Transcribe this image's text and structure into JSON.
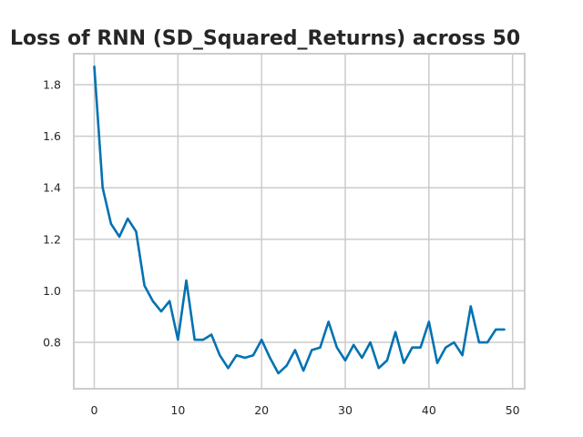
{
  "chart_data": {
    "type": "line",
    "title": "Loss of RNN (SD_Squared_Returns) across 50",
    "xlabel": "",
    "ylabel": "",
    "xlim": [
      -2.45,
      51.45
    ],
    "ylim": [
      0.62,
      1.92
    ],
    "xticks": [
      0,
      10,
      20,
      30,
      40,
      50
    ],
    "yticks": [
      0.8,
      1.0,
      1.2,
      1.4,
      1.6,
      1.8
    ],
    "ytick_labels": [
      "0.8",
      "1.0",
      "1.2",
      "1.4",
      "1.6",
      "1.8"
    ],
    "grid": true,
    "color": "#0072b2",
    "x": [
      0,
      1,
      2,
      3,
      4,
      5,
      6,
      7,
      8,
      9,
      10,
      11,
      12,
      13,
      14,
      15,
      16,
      17,
      18,
      19,
      20,
      21,
      22,
      23,
      24,
      25,
      26,
      27,
      28,
      29,
      30,
      31,
      32,
      33,
      34,
      35,
      36,
      37,
      38,
      39,
      40,
      41,
      42,
      43,
      44,
      45,
      46,
      47,
      48,
      49
    ],
    "values": [
      1.87,
      1.4,
      1.26,
      1.21,
      1.28,
      1.23,
      1.02,
      0.96,
      0.92,
      0.96,
      0.81,
      1.04,
      0.81,
      0.81,
      0.83,
      0.75,
      0.7,
      0.75,
      0.74,
      0.75,
      0.81,
      0.74,
      0.68,
      0.71,
      0.77,
      0.69,
      0.77,
      0.78,
      0.88,
      0.78,
      0.73,
      0.79,
      0.74,
      0.8,
      0.7,
      0.73,
      0.84,
      0.72,
      0.78,
      0.78,
      0.88,
      0.72,
      0.78,
      0.8,
      0.75,
      0.94,
      0.8,
      0.8,
      0.85,
      0.85
    ]
  }
}
